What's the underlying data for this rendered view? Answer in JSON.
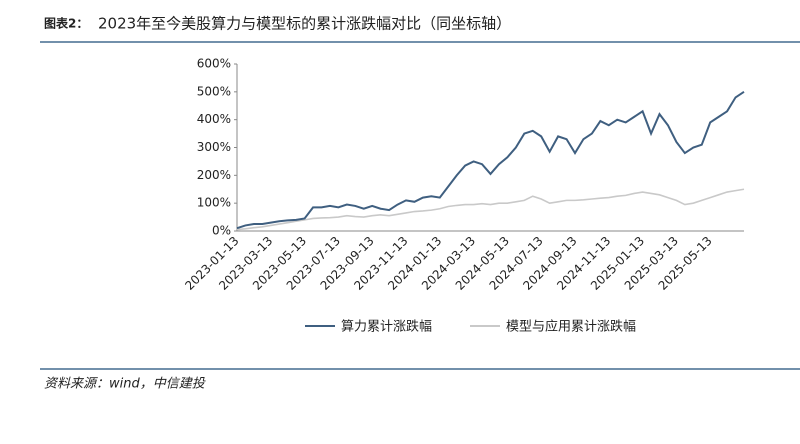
{
  "chart_data": {
    "type": "line",
    "figure_label": "图表2：",
    "title": "2023年至今美股算力与模型标的累计涨跌幅对比（同坐标轴）",
    "source": "资料来源：wind，中信建投",
    "categories": [
      "2023-01-13",
      null,
      null,
      null,
      "2023-03-13",
      null,
      null,
      null,
      "2023-05-13",
      null,
      null,
      null,
      "2023-07-13",
      null,
      null,
      null,
      "2023-09-13",
      null,
      null,
      null,
      "2023-11-13",
      null,
      null,
      null,
      "2024-01-13",
      null,
      null,
      null,
      "2024-03-13",
      null,
      null,
      null,
      "2024-05-13",
      null,
      null,
      null,
      "2024-07-13",
      null,
      null,
      null,
      "2024-09-13",
      null,
      null,
      null,
      "2024-11-13",
      null,
      null,
      null,
      "2025-01-13",
      null,
      null,
      null,
      "2025-03-13",
      null,
      null,
      null,
      "2025-05-13",
      null,
      null,
      null,
      null
    ],
    "series": [
      {
        "name": "算力累计涨跌幅",
        "color": "#3f5f80",
        "values": [
          10,
          20,
          25,
          25,
          30,
          35,
          38,
          40,
          45,
          85,
          85,
          90,
          85,
          95,
          90,
          80,
          90,
          80,
          75,
          95,
          110,
          105,
          120,
          125,
          120,
          160,
          200,
          235,
          250,
          240,
          205,
          240,
          265,
          300,
          350,
          360,
          340,
          285,
          340,
          330,
          280,
          330,
          350,
          395,
          380,
          400,
          390,
          410,
          430,
          350,
          420,
          380,
          320,
          280,
          300,
          310,
          390,
          410,
          430,
          480,
          500
        ]
      },
      {
        "name": "模型与应用累计涨跌幅",
        "color": "#c9c9c9",
        "values": [
          5,
          8,
          12,
          15,
          20,
          25,
          30,
          35,
          40,
          45,
          47,
          48,
          50,
          55,
          52,
          50,
          55,
          58,
          55,
          60,
          65,
          70,
          72,
          75,
          80,
          88,
          92,
          95,
          95,
          98,
          95,
          100,
          100,
          105,
          110,
          125,
          115,
          100,
          105,
          110,
          110,
          112,
          115,
          118,
          120,
          125,
          128,
          135,
          140,
          135,
          130,
          120,
          110,
          95,
          100,
          110,
          120,
          130,
          140,
          145,
          150
        ]
      }
    ],
    "ylim": [
      0,
      600
    ],
    "yticks": [
      {
        "value": 0,
        "label": "0%"
      },
      {
        "value": 100,
        "label": "100%"
      },
      {
        "value": 200,
        "label": "200%"
      },
      {
        "value": 300,
        "label": "300%"
      },
      {
        "value": 400,
        "label": "400%"
      },
      {
        "value": 500,
        "label": "500%"
      },
      {
        "value": 600,
        "label": "600%"
      }
    ]
  }
}
